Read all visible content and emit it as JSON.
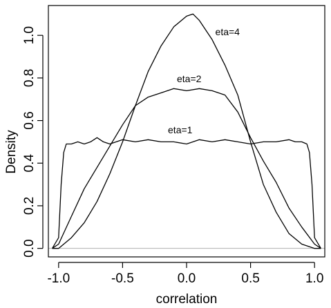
{
  "chart_data": {
    "type": "line",
    "title": "",
    "xlabel": "correlation",
    "ylabel": "Density",
    "xlim": [
      -1.08,
      1.08
    ],
    "ylim": [
      -0.04,
      1.14
    ],
    "xticks": [
      -1.0,
      -0.5,
      0.0,
      0.5,
      1.0
    ],
    "xtick_labels": [
      "-1.0",
      "-0.5",
      "0.0",
      "0.5",
      "1.0"
    ],
    "yticks": [
      0.0,
      0.2,
      0.4,
      0.6,
      0.8,
      1.0
    ],
    "ytick_labels": [
      "0.0",
      "0.2",
      "0.4",
      "0.6",
      "0.8",
      "1.0"
    ],
    "grid": false,
    "legend": "none",
    "reference_line": {
      "y": 0,
      "color": "#b0b0b0"
    },
    "series": [
      {
        "name": "eta=1",
        "label": {
          "text": "eta=1",
          "at": [
            -0.05,
            0.54
          ]
        },
        "x": [
          -1.05,
          -1.0,
          -0.98,
          -0.96,
          -0.94,
          -0.9,
          -0.85,
          -0.8,
          -0.75,
          -0.7,
          -0.65,
          -0.6,
          -0.5,
          -0.4,
          -0.3,
          -0.2,
          -0.1,
          0.0,
          0.1,
          0.2,
          0.3,
          0.4,
          0.5,
          0.6,
          0.7,
          0.8,
          0.85,
          0.9,
          0.94,
          0.96,
          0.98,
          1.0,
          1.05
        ],
        "y": [
          0.0,
          0.05,
          0.3,
          0.45,
          0.49,
          0.49,
          0.5,
          0.49,
          0.5,
          0.52,
          0.5,
          0.49,
          0.51,
          0.5,
          0.51,
          0.5,
          0.5,
          0.49,
          0.51,
          0.5,
          0.51,
          0.5,
          0.49,
          0.5,
          0.5,
          0.51,
          0.5,
          0.5,
          0.49,
          0.45,
          0.3,
          0.05,
          0.0
        ]
      },
      {
        "name": "eta=2",
        "label": {
          "text": "eta=2",
          "at": [
            0.02,
            0.78
          ]
        },
        "x": [
          -1.05,
          -1.0,
          -0.9,
          -0.8,
          -0.7,
          -0.6,
          -0.5,
          -0.4,
          -0.3,
          -0.2,
          -0.1,
          0.0,
          0.1,
          0.2,
          0.3,
          0.4,
          0.5,
          0.6,
          0.7,
          0.8,
          0.9,
          1.0,
          1.05
        ],
        "y": [
          0.0,
          0.02,
          0.15,
          0.28,
          0.38,
          0.48,
          0.58,
          0.67,
          0.71,
          0.73,
          0.75,
          0.74,
          0.75,
          0.74,
          0.72,
          0.64,
          0.52,
          0.41,
          0.31,
          0.19,
          0.1,
          0.02,
          0.0
        ]
      },
      {
        "name": "eta=4",
        "label": {
          "text": "eta=4",
          "at": [
            0.32,
            1.0
          ]
        },
        "x": [
          -1.05,
          -1.0,
          -0.9,
          -0.8,
          -0.7,
          -0.6,
          -0.5,
          -0.4,
          -0.3,
          -0.2,
          -0.1,
          0.0,
          0.05,
          0.1,
          0.2,
          0.3,
          0.4,
          0.5,
          0.6,
          0.7,
          0.8,
          0.9,
          1.0,
          1.05
        ],
        "y": [
          0.0,
          0.0,
          0.05,
          0.12,
          0.22,
          0.35,
          0.5,
          0.67,
          0.83,
          0.95,
          1.04,
          1.09,
          1.1,
          1.07,
          0.98,
          0.86,
          0.72,
          0.5,
          0.3,
          0.17,
          0.07,
          0.02,
          0.0,
          0.0
        ]
      }
    ]
  }
}
